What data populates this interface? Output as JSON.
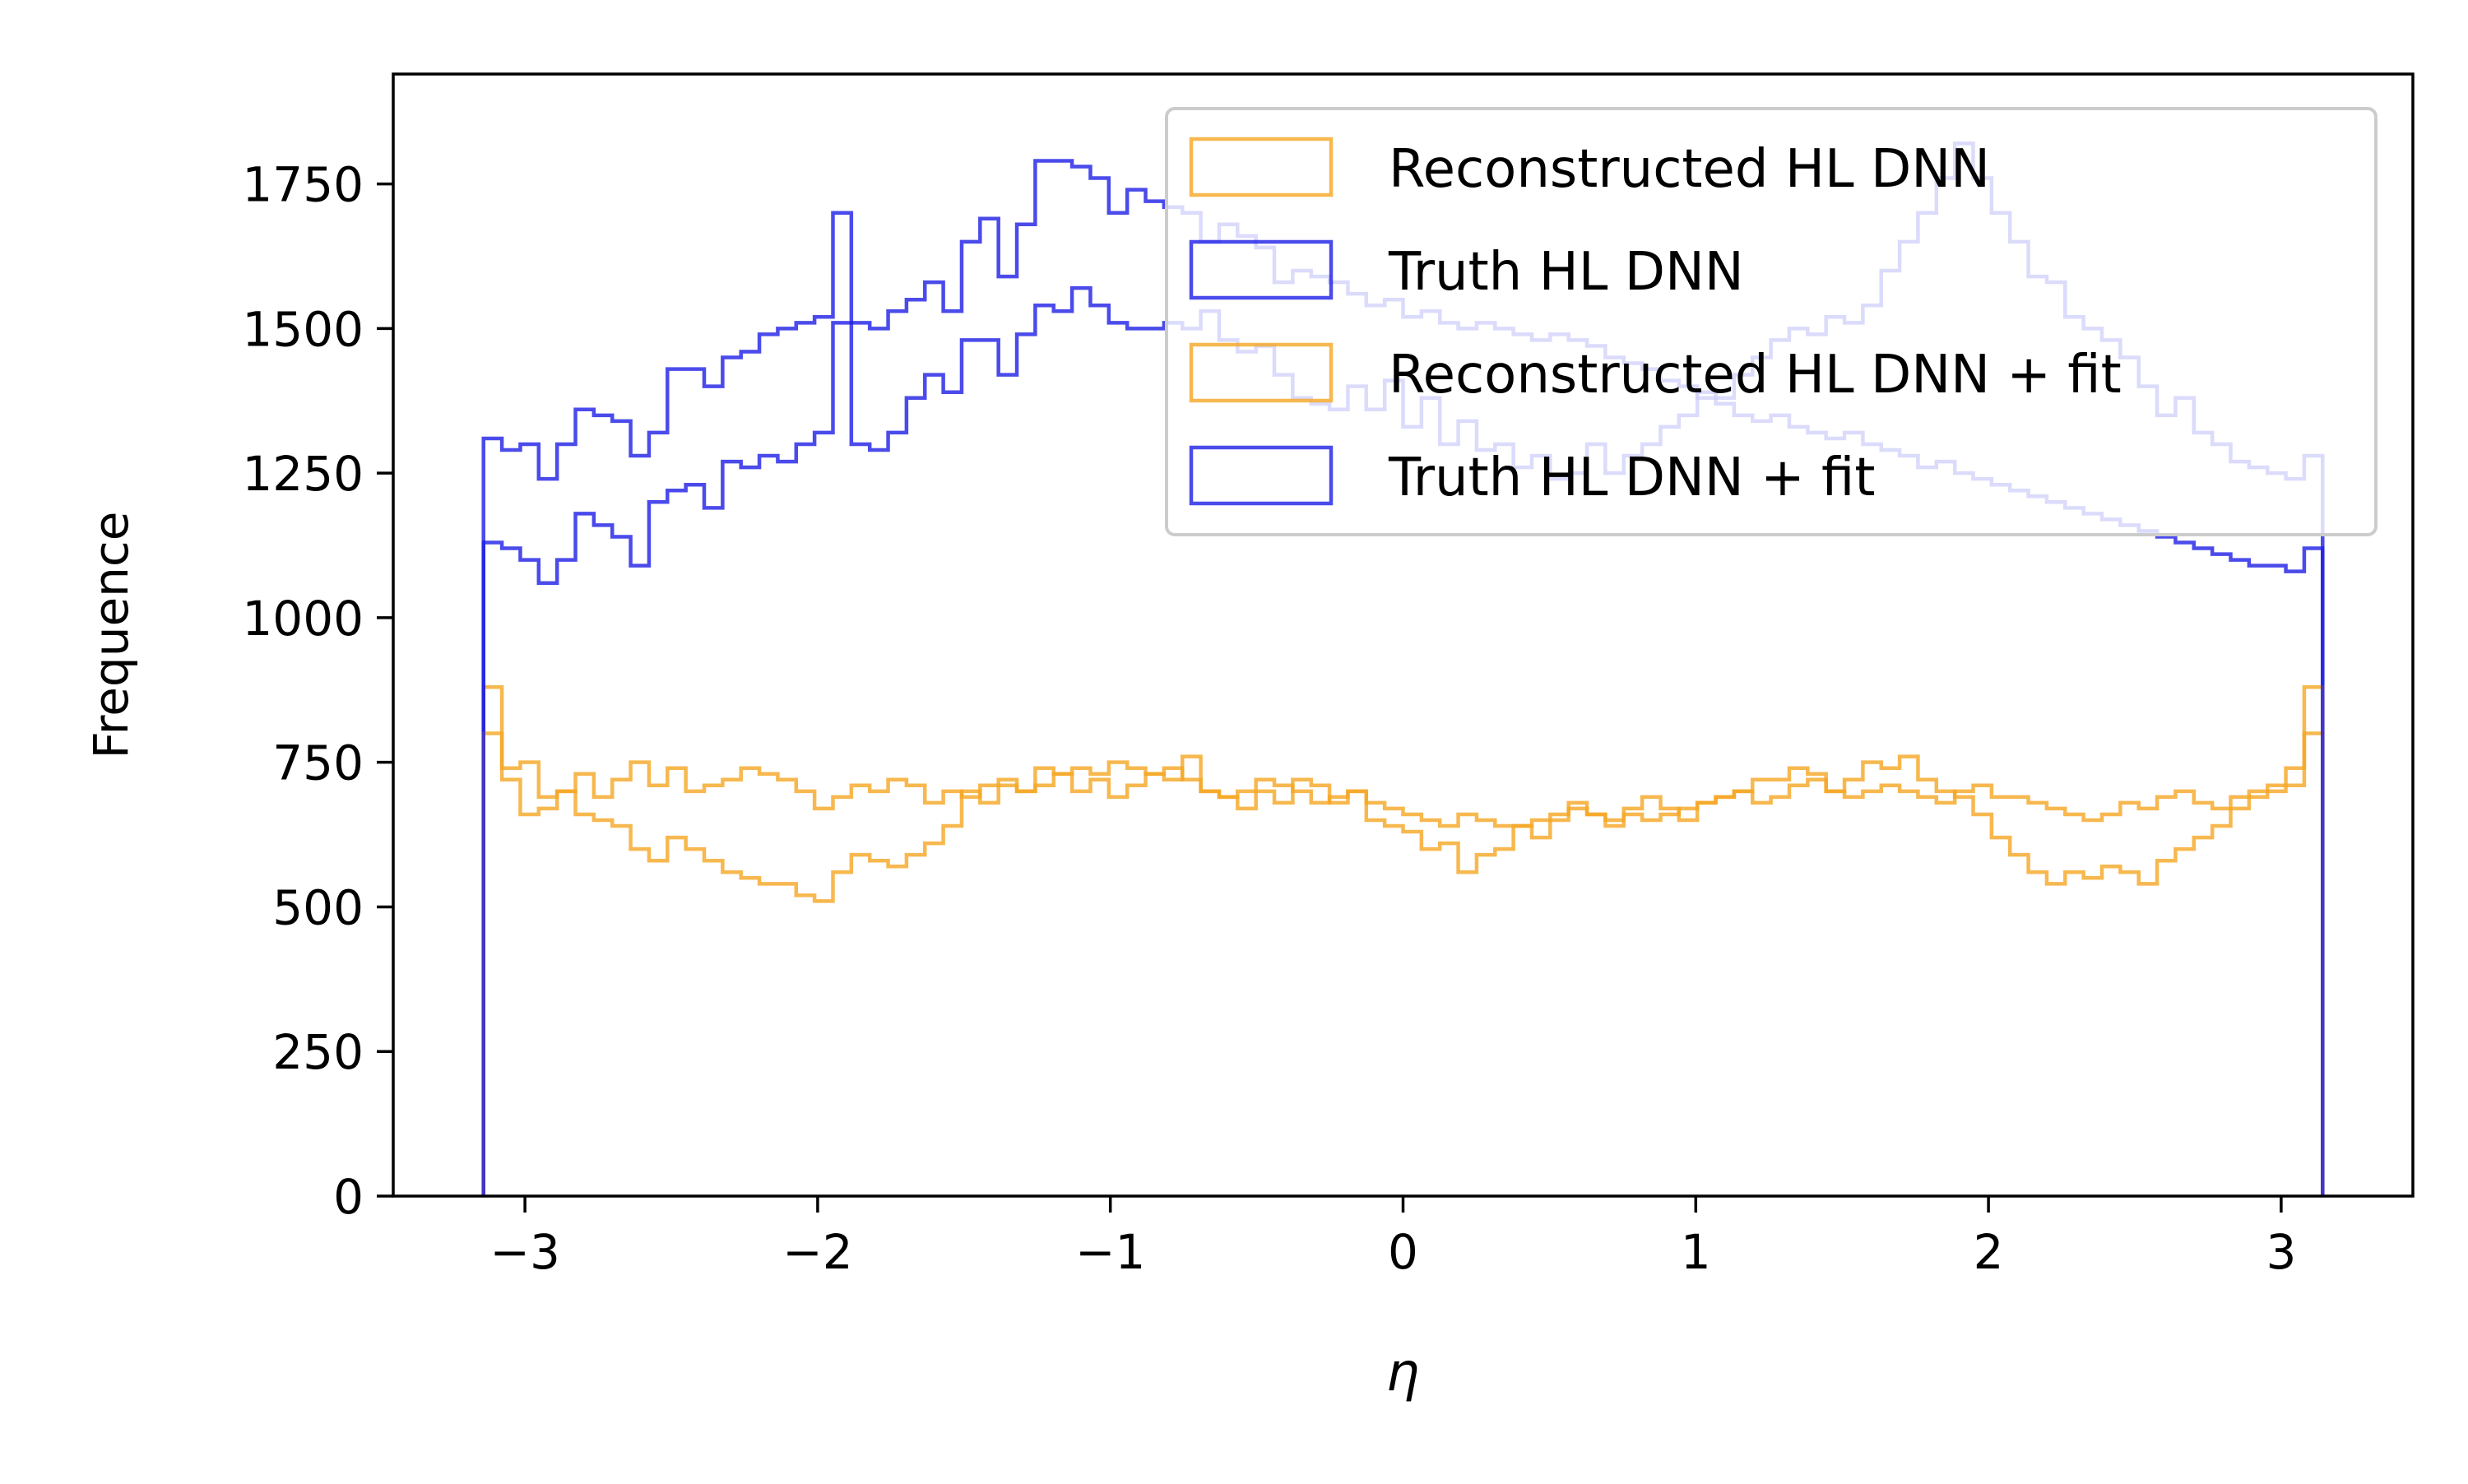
{
  "chart_data": {
    "type": "histogram-step",
    "title": "",
    "xlabel": "η",
    "ylabel": "Frequence",
    "xlim": [
      -3.45,
      3.45
    ],
    "ylim": [
      0,
      1940
    ],
    "xticks": [
      {
        "value": -3,
        "label": "−3"
      },
      {
        "value": -2,
        "label": "−2"
      },
      {
        "value": -1,
        "label": "−1"
      },
      {
        "value": 0,
        "label": "0"
      },
      {
        "value": 1,
        "label": "1"
      },
      {
        "value": 2,
        "label": "2"
      },
      {
        "value": 3,
        "label": "3"
      }
    ],
    "yticks": [
      {
        "value": 0,
        "label": "0"
      },
      {
        "value": 250,
        "label": "250"
      },
      {
        "value": 500,
        "label": "500"
      },
      {
        "value": 750,
        "label": "750"
      },
      {
        "value": 1000,
        "label": "1000"
      },
      {
        "value": 1250,
        "label": "1250"
      },
      {
        "value": 1500,
        "label": "1500"
      },
      {
        "value": 1750,
        "label": "1750"
      }
    ],
    "grid": false,
    "legend_position": "top-right",
    "bin_range": [
      -3.1416,
      3.1416
    ],
    "bins": 100,
    "series": [
      {
        "name": "Reconstructed HL DNN",
        "color": "#f5a623",
        "values": [
          880,
          740,
          750,
          690,
          700,
          730,
          690,
          720,
          750,
          710,
          740,
          700,
          710,
          720,
          740,
          730,
          720,
          700,
          670,
          690,
          710,
          700,
          720,
          710,
          680,
          700,
          690,
          710,
          720,
          700,
          710,
          730,
          700,
          720,
          690,
          710,
          730,
          740,
          720,
          700,
          690,
          700,
          720,
          710,
          700,
          680,
          690,
          700,
          680,
          670,
          660,
          650,
          640,
          660,
          650,
          640,
          640,
          650,
          660,
          670,
          660,
          650,
          660,
          650,
          660,
          670,
          680,
          690,
          700,
          680,
          690,
          710,
          720,
          700,
          690,
          700,
          710,
          700,
          690,
          680,
          700,
          710,
          690,
          690,
          680,
          670,
          660,
          650,
          660,
          680,
          670,
          690,
          700,
          680,
          670,
          690,
          700,
          710,
          740,
          800
        ]
      },
      {
        "name": "Truth HL DNN",
        "color": "#1e1ee6",
        "values": [
          1310,
          1290,
          1300,
          1240,
          1300,
          1360,
          1350,
          1340,
          1280,
          1320,
          1430,
          1430,
          1400,
          1450,
          1460,
          1490,
          1500,
          1510,
          1520,
          1700,
          1510,
          1500,
          1530,
          1550,
          1580,
          1530,
          1650,
          1690,
          1590,
          1680,
          1790,
          1790,
          1780,
          1760,
          1700,
          1740,
          1720,
          1710,
          1700,
          1650,
          1680,
          1660,
          1640,
          1580,
          1600,
          1590,
          1580,
          1560,
          1540,
          1550,
          1520,
          1530,
          1510,
          1500,
          1510,
          1500,
          1490,
          1480,
          1490,
          1480,
          1470,
          1450,
          1440,
          1430,
          1410,
          1400,
          1380,
          1370,
          1350,
          1340,
          1350,
          1330,
          1320,
          1310,
          1320,
          1300,
          1290,
          1280,
          1260,
          1270,
          1250,
          1240,
          1230,
          1220,
          1210,
          1200,
          1190,
          1180,
          1170,
          1160,
          1150,
          1140,
          1130,
          1120,
          1110,
          1100,
          1090,
          1090,
          1080,
          1120
        ]
      },
      {
        "name": "Reconstructed HL DNN + fit",
        "color": "#f5a623",
        "values": [
          800,
          720,
          660,
          670,
          700,
          660,
          650,
          640,
          600,
          580,
          620,
          600,
          580,
          560,
          550,
          540,
          540,
          520,
          510,
          560,
          590,
          580,
          570,
          590,
          610,
          640,
          700,
          680,
          710,
          700,
          740,
          730,
          740,
          730,
          750,
          740,
          730,
          720,
          760,
          700,
          690,
          670,
          700,
          680,
          720,
          710,
          680,
          700,
          650,
          640,
          630,
          600,
          610,
          560,
          590,
          600,
          640,
          620,
          650,
          680,
          660,
          640,
          670,
          690,
          670,
          650,
          680,
          690,
          700,
          720,
          720,
          740,
          730,
          700,
          720,
          750,
          740,
          760,
          720,
          700,
          690,
          660,
          620,
          590,
          560,
          540,
          560,
          550,
          570,
          560,
          540,
          580,
          600,
          620,
          640,
          670,
          690,
          700,
          710,
          880
        ]
      },
      {
        "name": "Truth HL DNN + fit",
        "color": "#1e1ee6",
        "values": [
          1130,
          1120,
          1100,
          1060,
          1100,
          1180,
          1160,
          1140,
          1090,
          1200,
          1220,
          1230,
          1190,
          1270,
          1260,
          1280,
          1270,
          1300,
          1320,
          1510,
          1300,
          1290,
          1320,
          1380,
          1420,
          1390,
          1480,
          1480,
          1420,
          1490,
          1540,
          1530,
          1570,
          1540,
          1510,
          1500,
          1500,
          1510,
          1500,
          1530,
          1480,
          1460,
          1470,
          1420,
          1380,
          1370,
          1360,
          1400,
          1360,
          1410,
          1330,
          1380,
          1300,
          1340,
          1290,
          1300,
          1260,
          1280,
          1240,
          1250,
          1300,
          1250,
          1280,
          1300,
          1330,
          1350,
          1390,
          1380,
          1420,
          1450,
          1480,
          1500,
          1490,
          1520,
          1510,
          1540,
          1600,
          1650,
          1700,
          1760,
          1820,
          1760,
          1700,
          1650,
          1590,
          1580,
          1520,
          1500,
          1480,
          1450,
          1400,
          1350,
          1380,
          1320,
          1300,
          1270,
          1260,
          1250,
          1240,
          1280
        ]
      }
    ]
  }
}
